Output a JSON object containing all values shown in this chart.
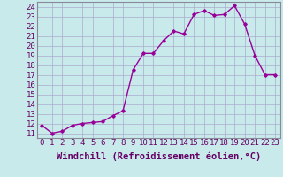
{
  "x": [
    0,
    1,
    2,
    3,
    4,
    5,
    6,
    7,
    8,
    9,
    10,
    11,
    12,
    13,
    14,
    15,
    16,
    17,
    18,
    19,
    20,
    21,
    22,
    23
  ],
  "y": [
    11.8,
    11.0,
    11.2,
    11.8,
    12.0,
    12.1,
    12.2,
    12.8,
    13.3,
    17.5,
    19.2,
    19.2,
    20.5,
    21.5,
    21.2,
    23.2,
    23.6,
    23.1,
    23.2,
    24.1,
    22.2,
    19.0,
    17.0,
    17.0
  ],
  "line_color": "#990099",
  "marker": "D",
  "marker_size": 1.8,
  "bg_color": "#c8eaea",
  "grid_color": "#aaaacc",
  "xlabel": "Windchill (Refroidissement éolien,°C)",
  "xlim": [
    -0.5,
    23.5
  ],
  "ylim": [
    10.5,
    24.5
  ],
  "yticks": [
    11,
    12,
    13,
    14,
    15,
    16,
    17,
    18,
    19,
    20,
    21,
    22,
    23,
    24
  ],
  "xticks": [
    0,
    1,
    2,
    3,
    4,
    5,
    6,
    7,
    8,
    9,
    10,
    11,
    12,
    13,
    14,
    15,
    16,
    17,
    18,
    19,
    20,
    21,
    22,
    23
  ],
  "xlabel_fontsize": 7.5,
  "tick_fontsize": 6.5,
  "line_width": 1.0
}
